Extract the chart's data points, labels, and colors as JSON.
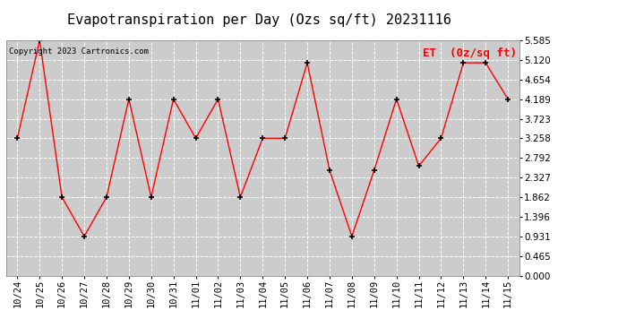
{
  "title": "Evapotranspiration per Day (Ozs sq/ft) 20231116",
  "copyright": "Copyright 2023 Cartronics.com",
  "legend_label": "ET  (0z/sq ft)",
  "x_labels": [
    "10/24",
    "10/25",
    "10/26",
    "10/27",
    "10/28",
    "10/29",
    "10/30",
    "10/31",
    "11/01",
    "11/02",
    "11/03",
    "11/04",
    "11/05",
    "11/06",
    "11/07",
    "11/08",
    "11/09",
    "11/10",
    "11/11",
    "11/12",
    "11/13",
    "11/14",
    "11/15"
  ],
  "y_values": [
    3.258,
    5.585,
    1.862,
    0.931,
    1.862,
    4.189,
    1.862,
    4.189,
    3.258,
    4.189,
    1.862,
    3.258,
    3.258,
    5.05,
    2.5,
    0.931,
    2.5,
    4.189,
    2.6,
    3.258,
    5.05,
    5.05,
    4.189
  ],
  "y_ticks": [
    0.0,
    0.465,
    0.931,
    1.396,
    1.862,
    2.327,
    2.792,
    3.258,
    3.723,
    4.189,
    4.654,
    5.12,
    5.585
  ],
  "y_min": 0.0,
  "y_max": 5.585,
  "line_color": "red",
  "marker_color": "black",
  "marker": "+",
  "bg_color": "#ffffff",
  "plot_bg_color": "#cccccc",
  "grid_color": "#ffffff",
  "title_color": "black",
  "legend_color": "red",
  "copyright_color": "black",
  "title_fontsize": 11,
  "tick_fontsize": 7.5,
  "legend_fontsize": 9,
  "copyright_fontsize": 6.5
}
